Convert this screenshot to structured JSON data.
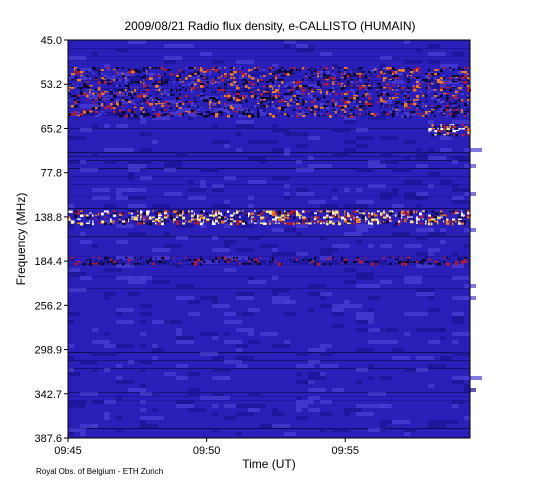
{
  "chart_data": {
    "type": "heatmap",
    "title": "2009/08/21  Radio flux density, e-CALLISTO (HUMAIN)",
    "xlabel": "Time (UT)",
    "ylabel": "Frequency (MHz)",
    "x_ticks": [
      "09:45",
      "09:50",
      "09:55"
    ],
    "x_range": [
      "09:45",
      "09:59:30"
    ],
    "y_ticks": [
      "45.0",
      "53.2",
      "65.2",
      "77.8",
      "138.8",
      "184.4",
      "256.2",
      "298.9",
      "342.7",
      "387.6"
    ],
    "y_orientation": "frequency increases downward",
    "credit": "Royal Obs. of Belgium - ETH Zurich",
    "colors": {
      "background": "#2a1fb8",
      "low": "#1a1390",
      "mid": "#4b3fd6",
      "emission_dark": "#0a0630",
      "emission_red": "#b81b2b",
      "emission_orange": "#f07a1a",
      "emission_yellow": "#ffe27a",
      "emission_white": "#ffffff"
    },
    "emission_features": [
      {
        "label": "bright interference band",
        "freq_mhz": [
          130,
          145
        ],
        "time": [
          "09:45",
          "09:59:30"
        ],
        "intensity": "high"
      },
      {
        "label": "striped bursts",
        "freq_mhz": [
          50,
          62
        ],
        "time": [
          "09:45",
          "09:59:30"
        ],
        "intensity": "medium"
      },
      {
        "label": "patch near end",
        "freq_mhz": [
          64,
          67
        ],
        "time": [
          "09:58",
          "09:59:30"
        ],
        "intensity": "high"
      },
      {
        "label": "dark band",
        "freq_mhz": [
          180,
          190
        ],
        "time": [
          "09:45",
          "09:59:30"
        ],
        "intensity": "low"
      }
    ]
  }
}
